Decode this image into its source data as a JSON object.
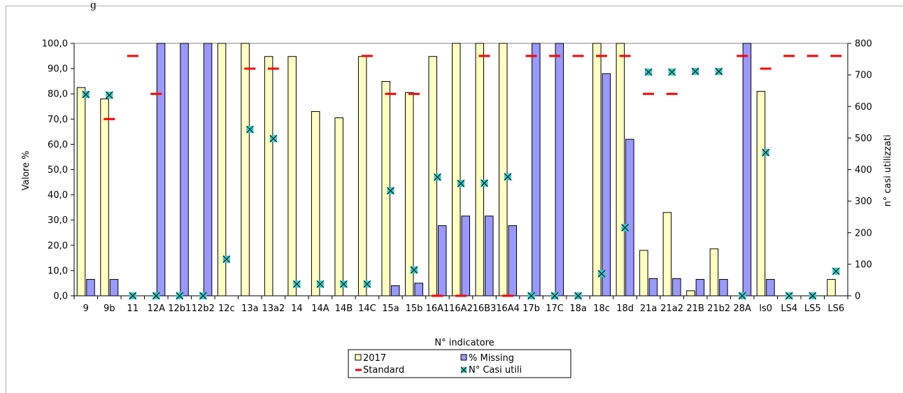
{
  "header": {
    "text": "g"
  },
  "chart_data": {
    "type": "bar",
    "title": "",
    "xlabel": "N° indicatore",
    "ylabel": "Valore %",
    "y2label": "n° casi utilizzati",
    "ylim": [
      0,
      100
    ],
    "y2lim": [
      0,
      800
    ],
    "yticks": [
      "0,0",
      "10,0",
      "20,0",
      "30,0",
      "40,0",
      "50,0",
      "60,0",
      "70,0",
      "80,0",
      "90,0",
      "100,0"
    ],
    "y2ticks": [
      "0",
      "100",
      "200",
      "300",
      "400",
      "500",
      "600",
      "700",
      "800"
    ],
    "categories": [
      "9",
      "9b",
      "11",
      "12A",
      "12b1",
      "12b2",
      "12c",
      "13a",
      "13a2",
      "14",
      "14A",
      "14B",
      "14C",
      "15a",
      "15b",
      "16A1",
      "16A2",
      "16B3",
      "16A4",
      "17b",
      "17C",
      "18a",
      "18c",
      "18d",
      "21a",
      "21a2",
      "21B",
      "21b2",
      "28A",
      "ls0",
      "LS4",
      "LS5",
      "LS6"
    ],
    "series": [
      {
        "name": "2017",
        "kind": "bar",
        "axis": "left",
        "color": "#ffffc0",
        "values": [
          82.5,
          78,
          null,
          null,
          null,
          null,
          100,
          100,
          94.8,
          94.8,
          73,
          70.5,
          94.8,
          84.9,
          80.5,
          94.8,
          100,
          100,
          100,
          null,
          null,
          null,
          100,
          100,
          18,
          33,
          2,
          18.6,
          null,
          81,
          null,
          null,
          6.5
        ]
      },
      {
        "name": "% Missing",
        "kind": "bar",
        "axis": "left",
        "color": "#9999ff",
        "values": [
          6.5,
          6.5,
          null,
          100,
          100,
          100,
          null,
          null,
          null,
          null,
          null,
          null,
          null,
          4,
          5,
          27.8,
          31.6,
          31.6,
          27.8,
          100,
          100,
          null,
          88,
          62,
          6.8,
          6.8,
          6.5,
          6.5,
          100,
          6.5,
          null,
          null,
          null
        ]
      },
      {
        "name": "Standard",
        "kind": "dash",
        "axis": "left",
        "color": "#ff0000",
        "values": [
          null,
          70,
          95,
          80,
          null,
          null,
          null,
          90,
          90,
          null,
          null,
          null,
          95,
          80,
          80,
          0,
          0,
          95,
          0,
          95,
          95,
          95,
          95,
          95,
          80,
          80,
          null,
          null,
          95,
          90,
          95,
          95,
          95
        ]
      },
      {
        "name": "N° Casi utili",
        "kind": "marker",
        "axis": "right",
        "color": "#33cccc",
        "values": [
          638,
          636,
          0,
          0,
          0,
          0,
          116,
          527,
          498,
          37,
          37,
          37,
          37,
          333,
          82,
          376,
          356,
          357,
          377,
          0,
          0,
          0,
          70,
          216,
          709,
          709,
          711,
          711,
          0,
          454,
          0,
          0,
          78
        ]
      }
    ],
    "legend_position": "bottom",
    "grid": false
  }
}
